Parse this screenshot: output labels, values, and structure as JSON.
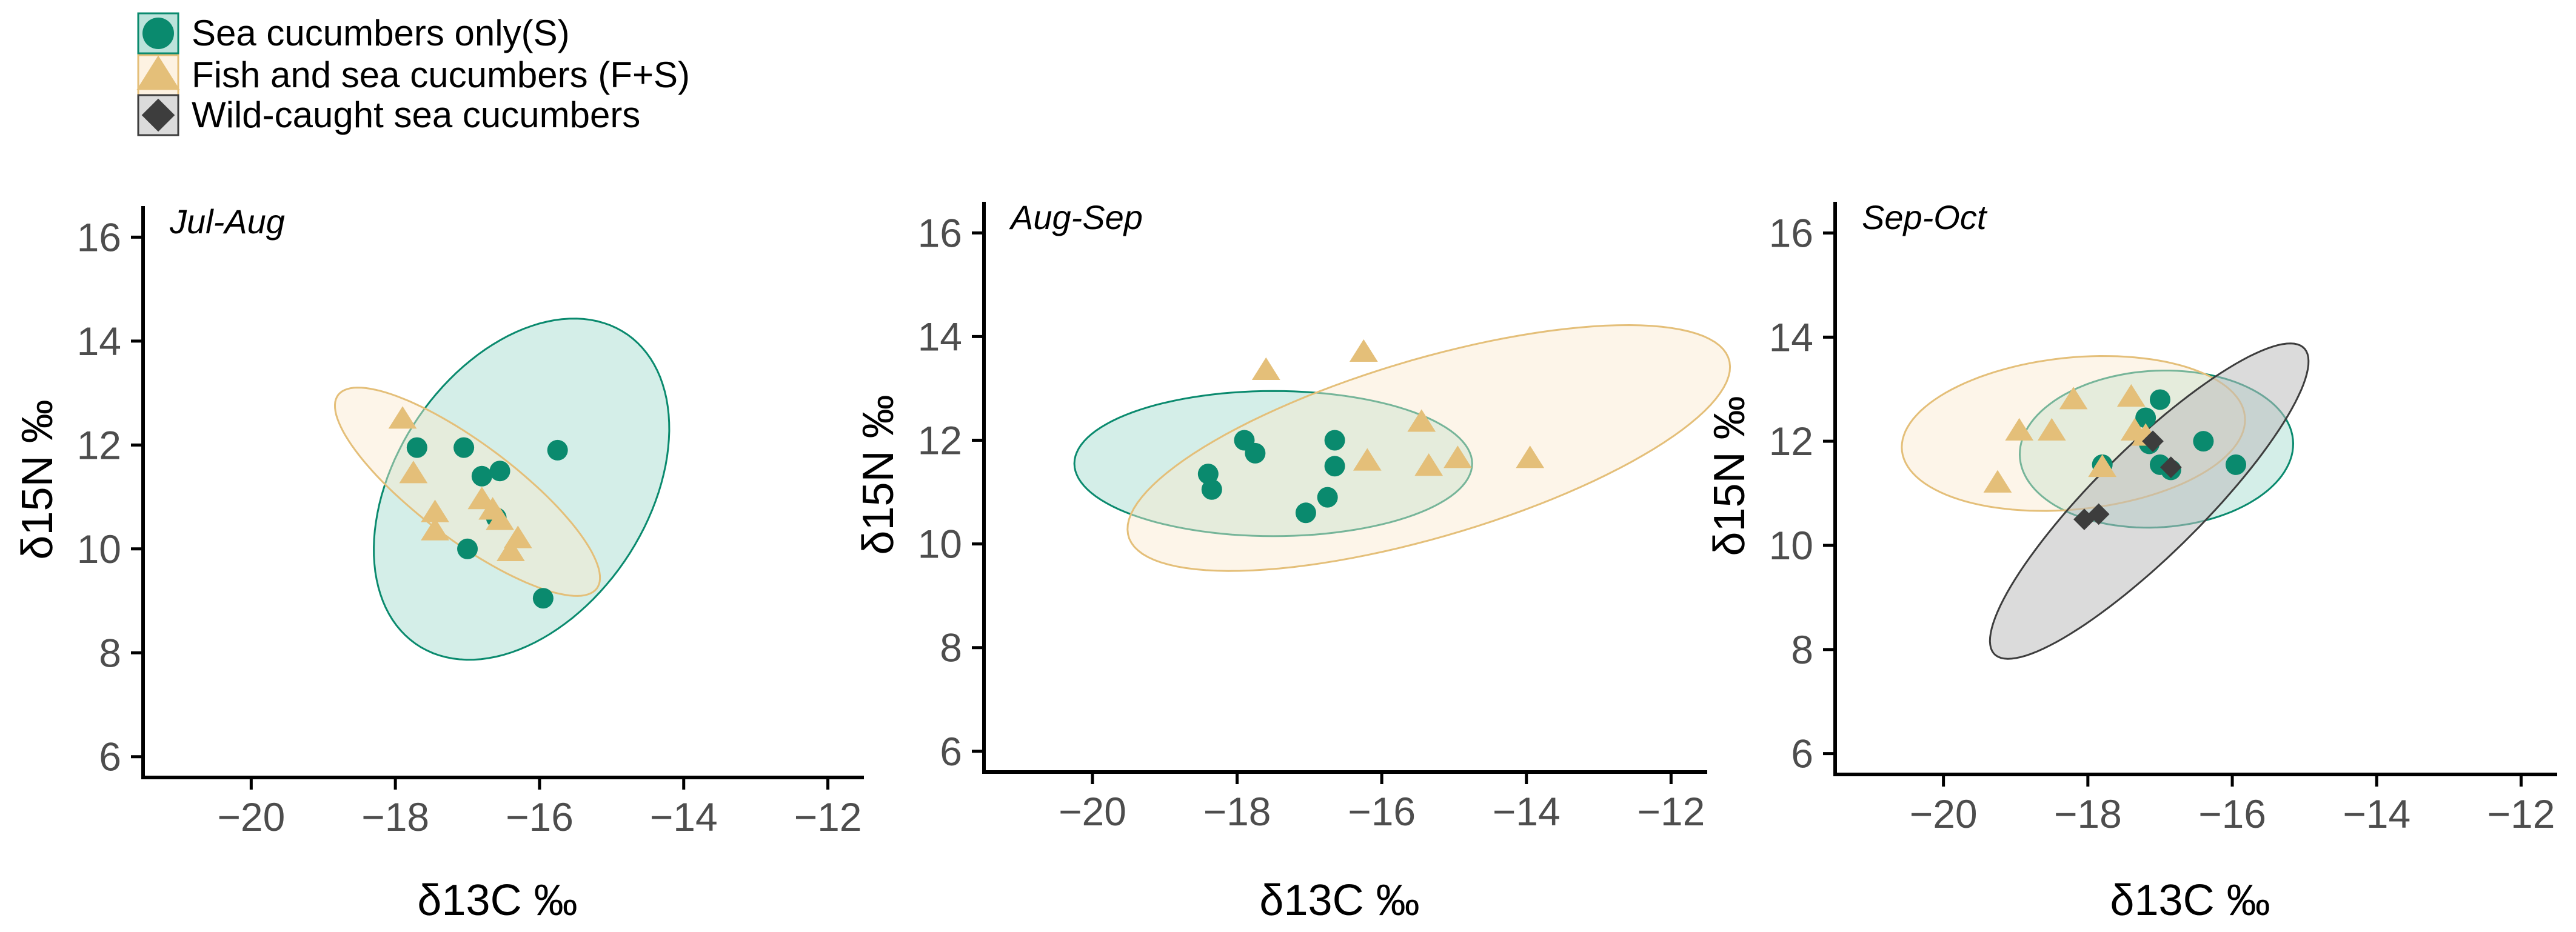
{
  "chart_data": [
    {
      "type": "scatter",
      "panel_label": "Jul-Aug",
      "xlabel": "δ13C ‰",
      "ylabel": "δ15N ‰",
      "xlim": [
        -21.5,
        -11.5
      ],
      "ylim": [
        5.6,
        16.6
      ],
      "xticks": [
        -20,
        -18,
        -16,
        -14,
        -12
      ],
      "yticks": [
        6,
        8,
        10,
        12,
        14,
        16
      ],
      "series": [
        {
          "name": "Sea cucumbers only(S)",
          "marker": "circle",
          "points": [
            [
              -17.7,
              11.95
            ],
            [
              -17.05,
              11.95
            ],
            [
              -16.8,
              11.4
            ],
            [
              -16.55,
              11.5
            ],
            [
              -16.6,
              10.6
            ],
            [
              -17.0,
              10.0
            ],
            [
              -15.95,
              9.05
            ],
            [
              -15.75,
              11.9
            ]
          ],
          "ellipse": {
            "cx": -16.25,
            "cy": 11.15,
            "rx": 1.85,
            "ry": 3.4,
            "angle_deg": -18
          }
        },
        {
          "name": "Fish and sea cucumbers (F+S)",
          "marker": "triangle",
          "points": [
            [
              -17.9,
              12.5
            ],
            [
              -17.75,
              11.45
            ],
            [
              -17.45,
              10.7
            ],
            [
              -17.45,
              10.35
            ],
            [
              -16.8,
              10.95
            ],
            [
              -16.65,
              10.75
            ],
            [
              -16.55,
              10.55
            ],
            [
              -16.3,
              10.2
            ],
            [
              -16.4,
              9.95
            ]
          ],
          "ellipse": {
            "cx": -17.0,
            "cy": 11.1,
            "rx": 2.6,
            "ry": 0.8,
            "angle_deg": -48
          }
        }
      ]
    },
    {
      "type": "scatter",
      "panel_label": "Aug-Sep",
      "xlabel": "δ13C ‰",
      "ylabel": "δ15N ‰",
      "xlim": [
        -21.5,
        -11.5
      ],
      "ylim": [
        5.6,
        16.6
      ],
      "xticks": [
        -20,
        -18,
        -16,
        -14,
        -12
      ],
      "yticks": [
        6,
        8,
        10,
        12,
        14,
        16
      ],
      "series": [
        {
          "name": "Sea cucumbers only(S)",
          "marker": "circle",
          "points": [
            [
              -18.4,
              11.35
            ],
            [
              -18.35,
              11.05
            ],
            [
              -17.9,
              12.0
            ],
            [
              -17.75,
              11.75
            ],
            [
              -17.05,
              10.6
            ],
            [
              -16.75,
              10.9
            ],
            [
              -16.65,
              11.5
            ],
            [
              -16.65,
              12.0
            ]
          ],
          "ellipse": {
            "cx": -17.5,
            "cy": 11.55,
            "rx": 2.75,
            "ry": 1.4,
            "angle_deg": 0
          }
        },
        {
          "name": "Fish and sea cucumbers (F+S)",
          "marker": "triangle",
          "points": [
            [
              -17.6,
              13.35
            ],
            [
              -16.25,
              13.7
            ],
            [
              -16.2,
              11.6
            ],
            [
              -15.45,
              12.35
            ],
            [
              -15.35,
              11.5
            ],
            [
              -14.95,
              11.65
            ],
            [
              -13.95,
              11.65
            ]
          ],
          "ellipse": {
            "cx": -15.35,
            "cy": 11.85,
            "rx": 4.5,
            "ry": 1.65,
            "angle_deg": 24
          }
        }
      ]
    },
    {
      "type": "scatter",
      "panel_label": "Sep-Oct",
      "xlabel": "δ13C ‰",
      "ylabel": "δ15N ‰",
      "xlim": [
        -21.5,
        -11.5
      ],
      "ylim": [
        5.6,
        16.6
      ],
      "xticks": [
        -20,
        -18,
        -16,
        -14,
        -12
      ],
      "yticks": [
        6,
        8,
        10,
        12,
        14,
        16
      ],
      "series": [
        {
          "name": "Sea cucumbers only(S)",
          "marker": "circle",
          "points": [
            [
              -17.8,
              11.55
            ],
            [
              -17.2,
              12.45
            ],
            [
              -17.0,
              12.8
            ],
            [
              -17.15,
              11.95
            ],
            [
              -17.0,
              11.55
            ],
            [
              -16.85,
              11.45
            ],
            [
              -16.4,
              12.0
            ],
            [
              -15.95,
              11.55
            ]
          ],
          "ellipse": {
            "cx": -17.05,
            "cy": 11.85,
            "rx": 1.9,
            "ry": 1.5,
            "angle_deg": 8
          }
        },
        {
          "name": "Fish and sea cucumbers (F+S)",
          "marker": "triangle",
          "points": [
            [
              -19.25,
              11.2
            ],
            [
              -18.95,
              12.2
            ],
            [
              -18.5,
              12.2
            ],
            [
              -18.2,
              12.8
            ],
            [
              -17.8,
              11.5
            ],
            [
              -17.4,
              12.85
            ],
            [
              -17.35,
              12.2
            ],
            [
              -17.2,
              12.1
            ]
          ],
          "ellipse": {
            "cx": -18.2,
            "cy": 12.15,
            "rx": 2.4,
            "ry": 1.45,
            "angle_deg": 10
          }
        },
        {
          "name": "Wild-caught sea cucumbers",
          "marker": "diamond",
          "points": [
            [
              -18.05,
              10.5
            ],
            [
              -17.85,
              10.6
            ],
            [
              -17.1,
              12.0
            ],
            [
              -16.85,
              11.5
            ]
          ],
          "ellipse": {
            "cx": -17.15,
            "cy": 10.85,
            "rx": 3.65,
            "ry": 0.85,
            "angle_deg": 55
          }
        }
      ]
    }
  ],
  "legend": [
    {
      "label": "Sea cucumbers only(S)",
      "marker": "circle"
    },
    {
      "label": "Fish and sea cucumbers (F+S)",
      "marker": "triangle"
    },
    {
      "label": "Wild-caught sea cucumbers",
      "marker": "diamond"
    }
  ],
  "colors": {
    "sea_cucumbers": "#0a8a6e",
    "sea_cucumbers_fill": "#8fd1c3",
    "fish": "#e4bf79",
    "fish_fill": "#fbe9cf",
    "wild": "#3d3d3d",
    "wild_fill": "#bdbdbd",
    "axis": "#000000"
  }
}
